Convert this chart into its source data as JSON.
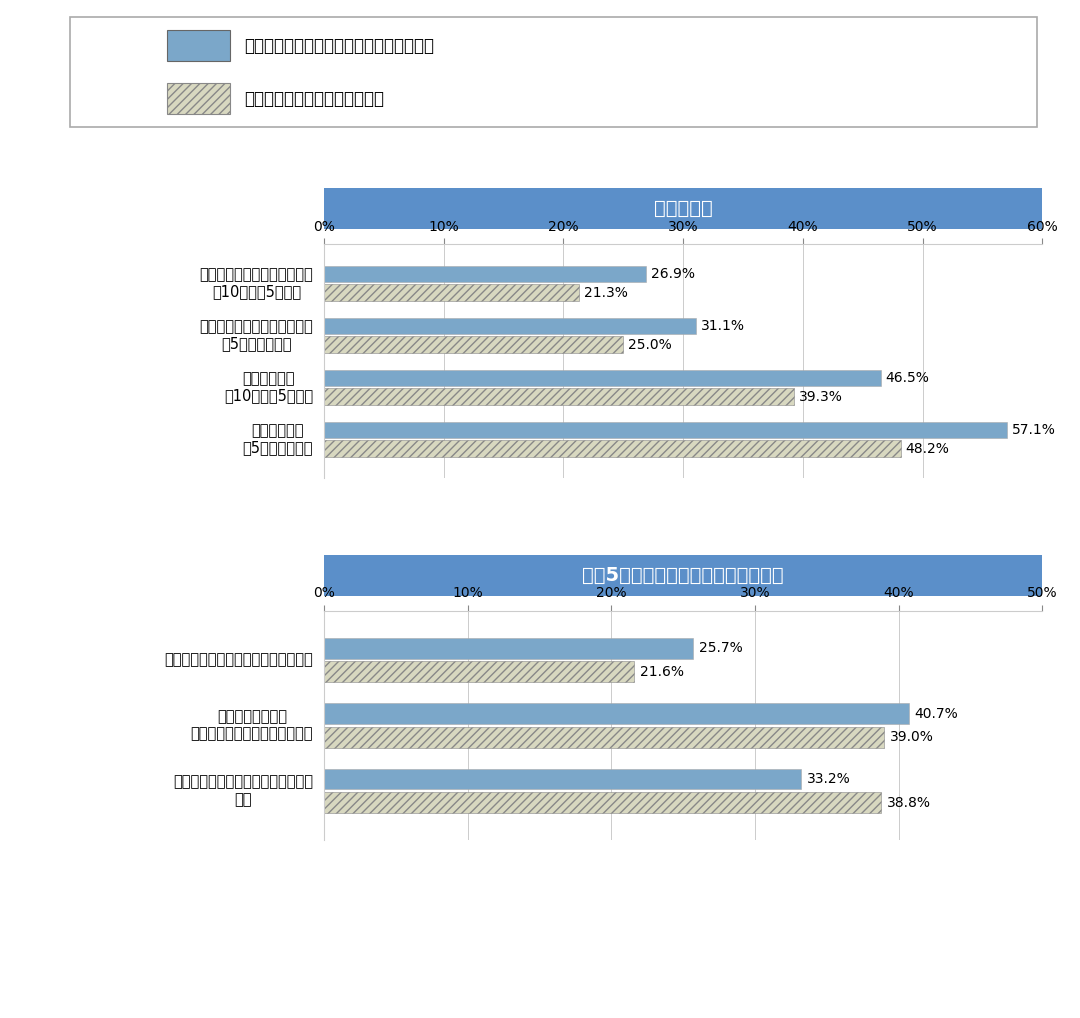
{
  "legend_labels": [
    "従業員と顧客満足度の両方を重視する企業",
    "顧客満足度のみを重視する企業"
  ],
  "solid_color": "#7ba7c9",
  "hatch_facecolor": "#d8d8c0",
  "hatch_edgecolor": "#888888",
  "hatch_pattern": "////",
  "header_color": "#5b8fc9",
  "header_text_color": "#ffffff",
  "border_color": "#aaaaaa",
  "grid_color": "#cccccc",
  "chart1_title": "業績の状況",
  "chart1_xlim": [
    0,
    60
  ],
  "chart1_xticks": [
    0,
    10,
    20,
    30,
    40,
    50,
    60
  ],
  "chart1_categories": [
    "売上高営業利益率が増加傾向\n（10年前～5年前）",
    "売上高営業利益率が増加傾向\n（5年前～現在）",
    "売上高が増加\n（10年前～5年前）",
    "売上高が増加\n（5年前～現在）"
  ],
  "chart1_values_solid": [
    26.9,
    31.1,
    46.5,
    57.1
  ],
  "chart1_values_hatch": [
    21.3,
    25.0,
    39.3,
    48.2
  ],
  "chart2_title": "過去5年間の正社員の人材確保の状況",
  "chart2_xlim": [
    0,
    50
  ],
  "chart2_xticks": [
    0,
    10,
    20,
    30,
    40,
    50
  ],
  "chart2_categories": [
    "量（人数）・質ともに確保できている",
    "量（人数）または\n質のいずれかが確保できている",
    "量（人数）・質ともに確保できてい\nない"
  ],
  "chart2_values_solid": [
    25.7,
    40.7,
    33.2
  ],
  "chart2_values_hatch": [
    21.6,
    39.0,
    38.8
  ],
  "bar_height": 0.32,
  "bar_gap": 0.04,
  "label_fontsize": 10.5,
  "tick_fontsize": 10,
  "title_fontsize": 14,
  "value_fontsize": 10,
  "legend_fontsize": 12
}
